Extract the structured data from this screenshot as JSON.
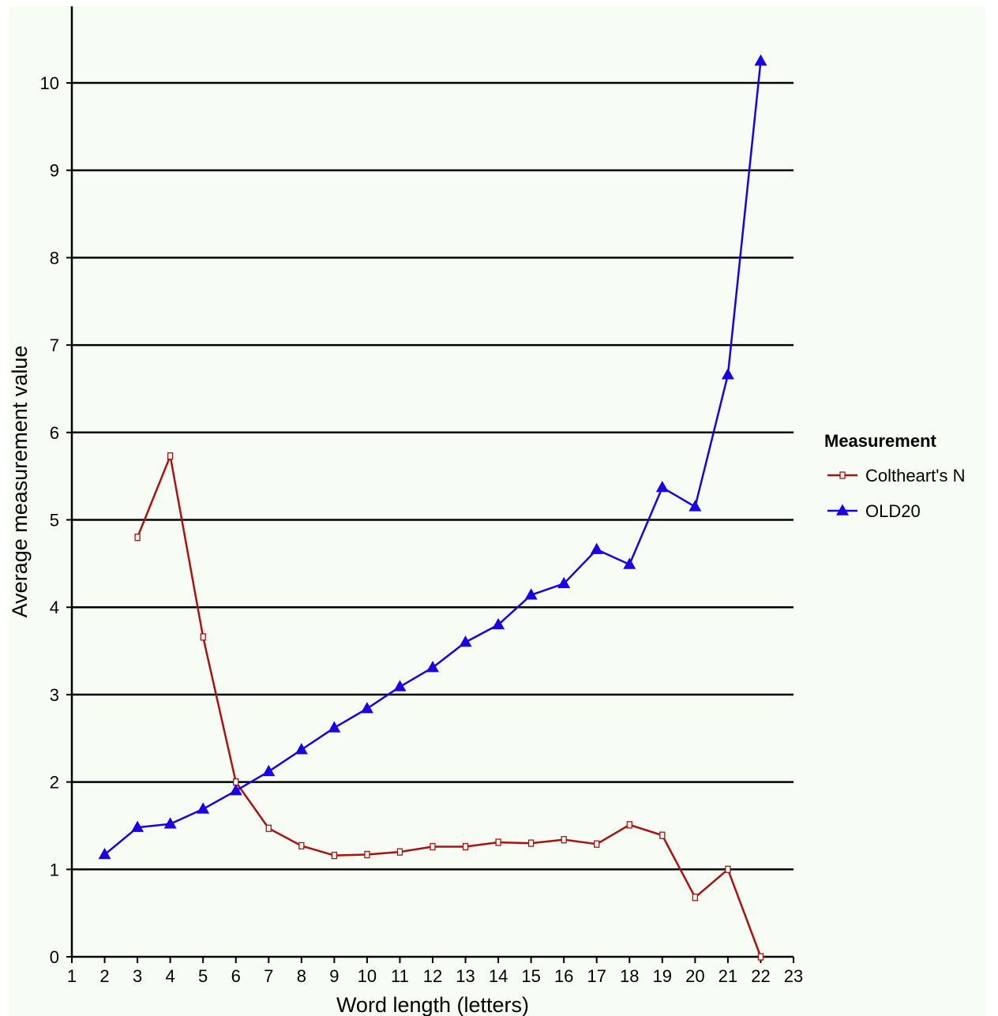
{
  "chart_data": {
    "type": "line",
    "title": "",
    "xlabel": "Word length (letters)",
    "ylabel": "Average measurement value",
    "xlim": [
      1,
      23
    ],
    "ylim": [
      0,
      10
    ],
    "x_ticks": [
      "1",
      "2",
      "3",
      "4",
      "5",
      "6",
      "7",
      "8",
      "9",
      "10",
      "11",
      "12",
      "13",
      "14",
      "15",
      "16",
      "17",
      "18",
      "19",
      "20",
      "21",
      "22",
      "23"
    ],
    "y_ticks": [
      "0",
      "1",
      "2",
      "3",
      "4",
      "5",
      "6",
      "7",
      "8",
      "9",
      "10"
    ],
    "grid": "horizontal",
    "legend": {
      "title": "Measurement",
      "position": "right",
      "entries": [
        "Coltheart's N",
        "OLD20"
      ]
    },
    "series": [
      {
        "name": "Coltheart's N",
        "color": "#aa1111",
        "marker": "open-square",
        "x": [
          3,
          4,
          5,
          6,
          7,
          8,
          9,
          10,
          11,
          12,
          13,
          14,
          15,
          16,
          17,
          18,
          19,
          20,
          21,
          22
        ],
        "y": [
          4.8,
          5.73,
          3.66,
          2.0,
          1.47,
          1.27,
          1.16,
          1.17,
          1.2,
          1.26,
          1.26,
          1.31,
          1.3,
          1.34,
          1.29,
          1.51,
          1.39,
          0.68,
          1.0,
          0.0
        ]
      },
      {
        "name": "OLD20",
        "color": "#1a00e6",
        "marker": "filled-triangle",
        "x": [
          2,
          3,
          4,
          5,
          6,
          7,
          8,
          9,
          10,
          11,
          12,
          13,
          14,
          15,
          16,
          17,
          18,
          19,
          20,
          21,
          22
        ],
        "y": [
          1.17,
          1.48,
          1.52,
          1.69,
          1.9,
          2.12,
          2.37,
          2.62,
          2.84,
          3.09,
          3.31,
          3.6,
          3.8,
          4.14,
          4.27,
          4.66,
          4.49,
          5.37,
          5.15,
          6.66,
          10.25
        ]
      }
    ]
  }
}
